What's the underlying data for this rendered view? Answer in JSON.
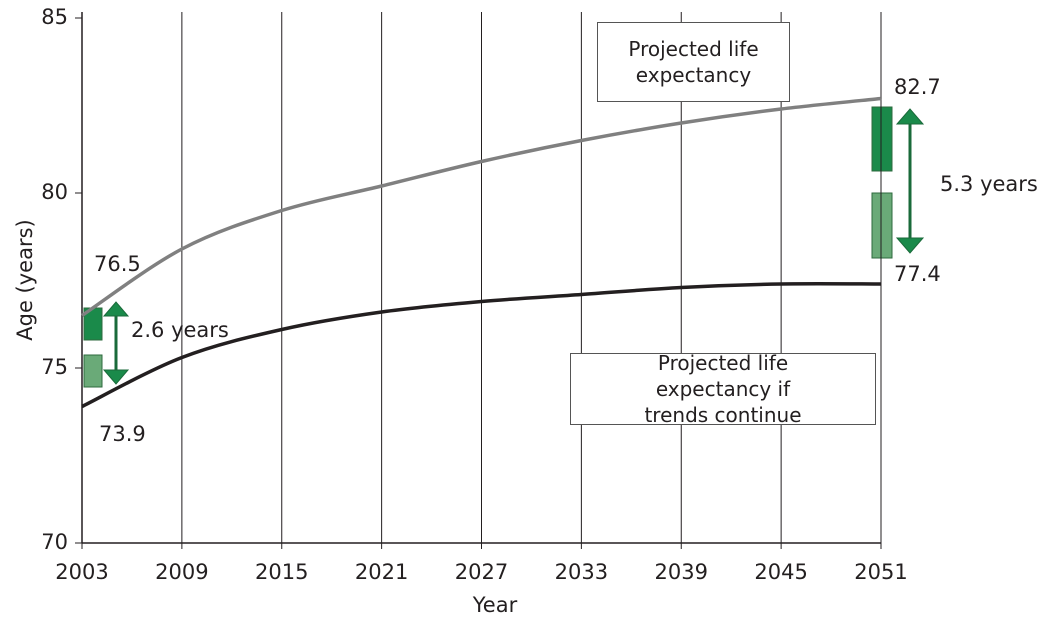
{
  "chart_data": {
    "type": "line",
    "x_label": "Year",
    "y_label": "Age (years)",
    "x": [
      2003,
      2009,
      2015,
      2021,
      2027,
      2033,
      2039,
      2045,
      2051
    ],
    "xlim": [
      2003,
      2051
    ],
    "xticks": [
      2003,
      2009,
      2015,
      2021,
      2027,
      2033,
      2039,
      2045,
      2051
    ],
    "ylim": [
      70,
      85
    ],
    "yticks": [
      70,
      75,
      80,
      85
    ],
    "grid": true,
    "series": [
      {
        "name": "Projected life expectancy",
        "color": "#808080",
        "values": [
          76.5,
          78.4,
          79.5,
          80.2,
          80.9,
          81.5,
          82.0,
          82.4,
          82.7
        ]
      },
      {
        "name": "Projected life expectancy if trends continue",
        "color": "#231f20",
        "values": [
          73.9,
          75.3,
          76.1,
          76.6,
          76.9,
          77.1,
          77.3,
          77.4,
          77.4
        ]
      }
    ],
    "annotations": [
      "2.6 years",
      "5.3 years"
    ]
  }
}
